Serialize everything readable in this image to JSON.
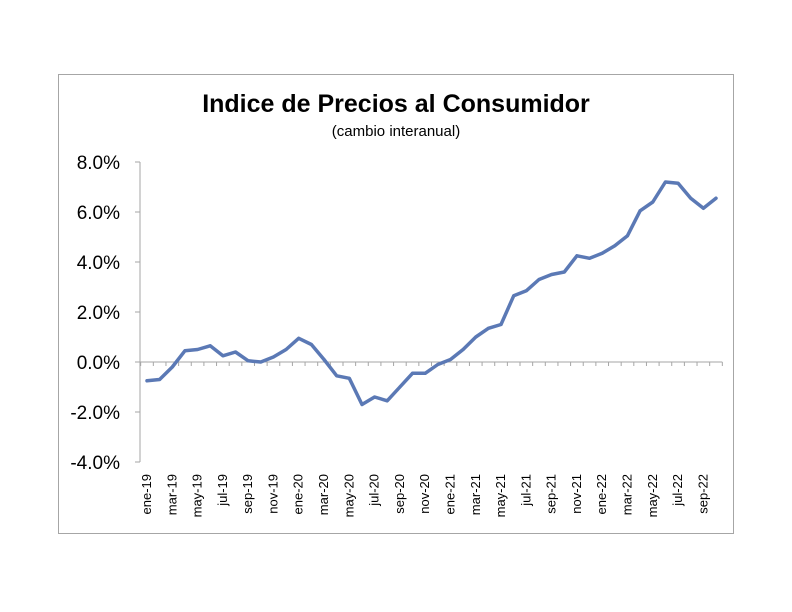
{
  "chart_data": {
    "type": "line",
    "title": "Indice de Precios al Consumidor",
    "subtitle": "(cambio interanual)",
    "xlabel": "",
    "ylabel": "",
    "ylim": [
      -4.0,
      8.0
    ],
    "ytick_labels": [
      "8.0%",
      "6.0%",
      "4.0%",
      "2.0%",
      "0.0%",
      "-2.0%",
      "-4.0%"
    ],
    "ytick_values": [
      8.0,
      6.0,
      4.0,
      2.0,
      0.0,
      -2.0,
      -4.0
    ],
    "grid": false,
    "legend": "none",
    "line_color": "#5b79b5",
    "x": [
      "ene-19",
      "feb-19",
      "mar-19",
      "abr-19",
      "may-19",
      "jun-19",
      "jul-19",
      "ago-19",
      "sep-19",
      "oct-19",
      "nov-19",
      "dic-19",
      "ene-20",
      "feb-20",
      "mar-20",
      "abr-20",
      "may-20",
      "jun-20",
      "jul-20",
      "ago-20",
      "sep-20",
      "oct-20",
      "nov-20",
      "dic-20",
      "ene-21",
      "feb-21",
      "mar-21",
      "abr-21",
      "may-21",
      "jun-21",
      "jul-21",
      "ago-21",
      "sep-21",
      "oct-21",
      "nov-21",
      "dic-21",
      "ene-22",
      "feb-22",
      "mar-22",
      "abr-22",
      "may-22",
      "jun-22",
      "jul-22",
      "ago-22",
      "sep-22",
      "oct-22"
    ],
    "x_tick_labels": [
      "ene-19",
      "mar-19",
      "may-19",
      "jul-19",
      "sep-19",
      "nov-19",
      "ene-20",
      "mar-20",
      "may-20",
      "jul-20",
      "sep-20",
      "nov-20",
      "ene-21",
      "mar-21",
      "may-21",
      "jul-21",
      "sep-21",
      "nov-21",
      "ene-22",
      "mar-22",
      "may-22",
      "jul-22",
      "sep-22"
    ],
    "series": [
      {
        "values": [
          -0.75,
          -0.7,
          -0.2,
          0.45,
          0.5,
          0.65,
          0.25,
          0.4,
          0.05,
          0.0,
          0.2,
          0.5,
          0.95,
          0.7,
          0.1,
          -0.55,
          -0.65,
          -1.7,
          -1.4,
          -1.55,
          -1.0,
          -0.45,
          -0.45,
          -0.1,
          0.1,
          0.5,
          1.0,
          1.35,
          1.5,
          2.65,
          2.85,
          3.3,
          3.5,
          3.6,
          4.25,
          4.15,
          4.35,
          4.65,
          5.05,
          6.05,
          6.4,
          7.2,
          7.15,
          6.55,
          6.15,
          6.55
        ]
      }
    ]
  }
}
